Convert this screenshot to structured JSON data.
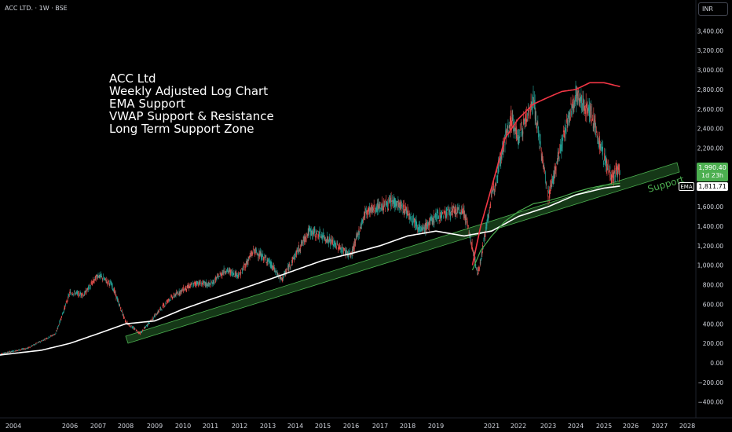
{
  "header": {
    "symbol_title": "ACC LTD. · 1W · BSE",
    "currency": "INR"
  },
  "annotation": {
    "lines": [
      "ACC Ltd",
      "Weekly Adjusted Log Chart",
      "EMA Support",
      "VWAP Support & Resistance",
      "Long Term Support Zone"
    ]
  },
  "badges": {
    "last_price": "1,990.40",
    "countdown": "1d 23h",
    "ema_label": "EMA",
    "ema_value": "1,811.71",
    "support_label": "Support"
  },
  "colors": {
    "background": "#000000",
    "up_candle": "#26a69a",
    "down_candle": "#ef5350",
    "ema_line": "#ffffff",
    "vwap_upper": "#f23645",
    "vwap_lower": "#4caf50",
    "support_zone": "#4caf50",
    "axis_text": "#d1d4dc"
  },
  "chart_data": {
    "type": "line",
    "title": "ACC LTD. · 1W · BSE",
    "y_tick_labels": [
      "3,400.00",
      "3,200.00",
      "3,000.00",
      "2,800.00",
      "2,600.00",
      "2,400.00",
      "2,200.00",
      "2,000.00",
      "1,800.00",
      "1,600.00",
      "1,400.00",
      "1,200.00",
      "1,000.00",
      "800.00",
      "600.00",
      "400.00",
      "200.00",
      "0.00",
      "−200.00",
      "−400.00"
    ],
    "x_tick_labels": [
      "2004",
      "2006",
      "2007",
      "2008",
      "2009",
      "2010",
      "2011",
      "2012",
      "2013",
      "2014",
      "2015",
      "2016",
      "2017",
      "2018",
      "2019",
      "2021",
      "2022",
      "2023",
      "2024",
      "2025",
      "2026",
      "2027",
      "2028"
    ],
    "series": [
      {
        "name": "Price",
        "x": [
          2003.5,
          2004.5,
          2005.5,
          2006.0,
          2006.5,
          2007.0,
          2007.5,
          2008.0,
          2008.5,
          2009.0,
          2009.5,
          2010.0,
          2010.5,
          2011.0,
          2011.5,
          2012.0,
          2012.5,
          2013.0,
          2013.5,
          2014.0,
          2014.5,
          2015.0,
          2015.5,
          2016.0,
          2016.5,
          2017.0,
          2017.5,
          2018.0,
          2018.5,
          2019.0,
          2019.5,
          2020.0,
          2020.25,
          2020.5,
          2021.0,
          2021.5,
          2021.75,
          2022.0,
          2022.5,
          2023.0,
          2023.5,
          2024.0,
          2024.25,
          2024.5,
          2025.0,
          2025.3,
          2025.6
        ],
        "y": [
          90,
          150,
          300,
          720,
          700,
          900,
          800,
          420,
          300,
          480,
          650,
          750,
          820,
          800,
          950,
          900,
          1150,
          1050,
          850,
          1100,
          1350,
          1300,
          1200,
          1100,
          1550,
          1600,
          1650,
          1550,
          1350,
          1500,
          1550,
          1550,
          1250,
          900,
          1700,
          2300,
          2500,
          2300,
          2700,
          1700,
          2250,
          2750,
          2650,
          2600,
          2100,
          1900,
          1990
        ]
      },
      {
        "name": "EMA",
        "x": [
          2003.5,
          2005,
          2006,
          2007,
          2008,
          2009,
          2010,
          2011,
          2012,
          2013,
          2014,
          2015,
          2016,
          2017,
          2018,
          2019,
          2020,
          2021,
          2022,
          2023,
          2024,
          2025,
          2025.6
        ],
        "y": [
          80,
          130,
          200,
          300,
          400,
          430,
          550,
          650,
          750,
          850,
          950,
          1050,
          1120,
          1200,
          1300,
          1350,
          1300,
          1350,
          1500,
          1600,
          1720,
          1790,
          1811
        ]
      }
    ],
    "support_zone_label": "Support",
    "last_price": 1990.4,
    "ema_value": 1811.71,
    "grid": false,
    "legend": "none"
  }
}
